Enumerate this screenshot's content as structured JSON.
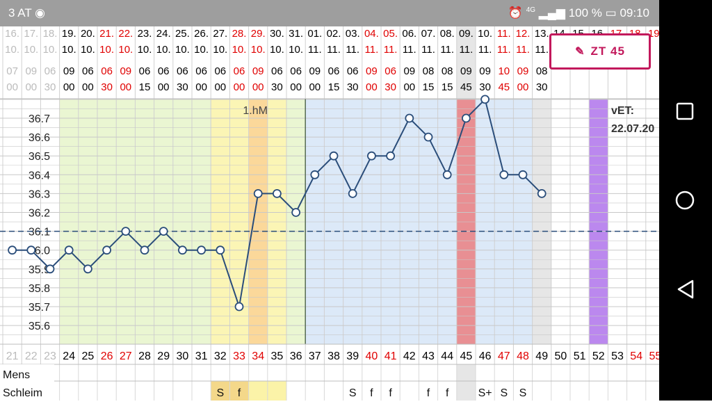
{
  "status": {
    "carrier": "3 AT",
    "network": "4G",
    "battery": "100 %",
    "time": "09:10"
  },
  "badge": {
    "label": "ZT 45"
  },
  "colors": {
    "normal": "#000000",
    "highlight": "#e00000",
    "line": "#2a4d7a"
  },
  "chart_data": {
    "type": "line",
    "dates_day": [
      "16.",
      "17.",
      "18.",
      "19.",
      "20.",
      "21.",
      "22.",
      "23.",
      "24.",
      "25.",
      "26.",
      "27.",
      "28.",
      "29.",
      "30.",
      "31.",
      "01.",
      "02.",
      "03.",
      "04.",
      "05.",
      "06.",
      "07.",
      "08.",
      "09.",
      "10.",
      "11.",
      "12.",
      "13.",
      "14.",
      "15.",
      "16.",
      "17.",
      "18.",
      "19."
    ],
    "dates_month": [
      "10.",
      "10.",
      "10.",
      "10.",
      "10.",
      "10.",
      "10.",
      "10.",
      "10.",
      "10.",
      "10.",
      "10.",
      "10.",
      "10.",
      "10.",
      "10.",
      "11.",
      "11.",
      "11.",
      "11.",
      "11.",
      "11.",
      "11.",
      "11.",
      "11.",
      "11.",
      "11.",
      "11.",
      "11.",
      "",
      "",
      "",
      "",
      "",
      ""
    ],
    "date_highlight": [
      false,
      false,
      false,
      false,
      false,
      true,
      true,
      false,
      false,
      false,
      false,
      false,
      true,
      true,
      false,
      false,
      false,
      false,
      false,
      true,
      true,
      false,
      false,
      false,
      false,
      false,
      true,
      true,
      false,
      false,
      false,
      false,
      true,
      true,
      true
    ],
    "times_hour": [
      "07",
      "09",
      "06",
      "09",
      "06",
      "06",
      "09",
      "06",
      "06",
      "06",
      "06",
      "06",
      "06",
      "09",
      "06",
      "06",
      "09",
      "06",
      "06",
      "09",
      "06",
      "09",
      "08",
      "08",
      "09",
      "09",
      "10",
      "09",
      "08",
      "",
      "",
      "",
      "",
      "",
      ""
    ],
    "times_min": [
      "00",
      "00",
      "30",
      "00",
      "00",
      "30",
      "00",
      "15",
      "00",
      "30",
      "00",
      "00",
      "00",
      "00",
      "30",
      "00",
      "00",
      "15",
      "30",
      "00",
      "30",
      "00",
      "15",
      "15",
      "45",
      "30",
      "45",
      "00",
      "30",
      "",
      "",
      "",
      "",
      "",
      ""
    ],
    "time_highlight": [
      false,
      false,
      false,
      false,
      false,
      true,
      true,
      false,
      false,
      false,
      false,
      false,
      true,
      true,
      false,
      false,
      false,
      false,
      false,
      true,
      true,
      false,
      false,
      false,
      false,
      false,
      true,
      true,
      false,
      false,
      false,
      false,
      false,
      false,
      false
    ],
    "cycle_days": [
      "21",
      "22",
      "23",
      "24",
      "25",
      "26",
      "27",
      "28",
      "29",
      "30",
      "31",
      "32",
      "33",
      "34",
      "35",
      "36",
      "37",
      "38",
      "39",
      "40",
      "41",
      "42",
      "43",
      "44",
      "45",
      "46",
      "47",
      "48",
      "49",
      "50",
      "51",
      "52",
      "53",
      "54",
      "55"
    ],
    "cycle_highlight": [
      false,
      false,
      false,
      false,
      false,
      true,
      true,
      false,
      false,
      false,
      false,
      false,
      true,
      true,
      false,
      false,
      false,
      false,
      false,
      true,
      true,
      false,
      false,
      false,
      false,
      false,
      true,
      true,
      false,
      false,
      false,
      false,
      false,
      true,
      true
    ],
    "temperatures": [
      36.0,
      36.0,
      35.9,
      36.0,
      35.9,
      36.0,
      36.1,
      36.0,
      36.1,
      36.0,
      36.0,
      36.0,
      35.7,
      36.3,
      36.3,
      36.2,
      36.4,
      36.5,
      36.3,
      36.5,
      36.5,
      36.7,
      36.6,
      36.4,
      36.7,
      36.8,
      36.4,
      36.4,
      36.3,
      null,
      null,
      null,
      null,
      null,
      null
    ],
    "y_ticks": [
      "36.7",
      "36.6",
      "36.5",
      "36.4",
      "36.3",
      "36.2",
      "36.1",
      "36.0",
      "35.9",
      "35.8",
      "35.7",
      "35.6"
    ],
    "ylim": [
      35.5,
      36.8
    ],
    "coverline": 36.1,
    "zones": [
      {
        "label": "follicular",
        "from": 3,
        "to": 16,
        "color": "#eaf6d2"
      },
      {
        "label": "fertile-mucus",
        "from": 11,
        "to": 15,
        "color": "#fbf5b5"
      },
      {
        "label": "fertile-peak",
        "from": 13,
        "to": 14,
        "color": "#fbd89a"
      },
      {
        "label": "luteal",
        "from": 16,
        "to": 29,
        "color": "#dce9f8"
      },
      {
        "label": "menstruation",
        "from": 24,
        "to": 25,
        "color": "#e88f93"
      },
      {
        "label": "today",
        "from": 28,
        "to": 29,
        "color": "#e6e6e6"
      },
      {
        "label": "expected-period",
        "from": 31,
        "to": 32,
        "color": "#bb88ee"
      }
    ],
    "annotation_hm": "1.hM",
    "vet_label": "vET:",
    "vet_date": "22.07.20",
    "rows": [
      {
        "label": "Mens",
        "values": []
      },
      {
        "label": "Schleim",
        "values": [
          "",
          "",
          "",
          "",
          "",
          "",
          "",
          "",
          "",
          "",
          "",
          "S",
          "f",
          "",
          "",
          "",
          "",
          "",
          "S",
          "f",
          "f",
          "",
          "f",
          "f",
          "",
          "S+",
          "S",
          "S",
          "",
          "",
          "",
          "",
          "",
          "",
          ""
        ]
      }
    ]
  }
}
